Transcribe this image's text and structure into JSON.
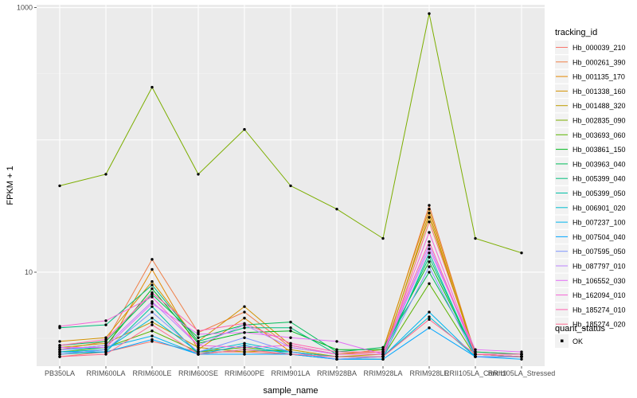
{
  "chart_data": {
    "type": "line",
    "xlabel": "sample_name",
    "ylabel": "FPKM + 1",
    "y_scale": "log10",
    "ylim": [
      1.95,
      1050
    ],
    "y_ticks": [
      {
        "value": 10,
        "label": "10"
      },
      {
        "value": 1000,
        "label": "1000"
      }
    ],
    "categories": [
      "PB350LA",
      "RRIM600LA",
      "RRIM600LE",
      "RRIM600SE",
      "RRIM600PE",
      "RRIM901LA",
      "RRIM928BA",
      "RRIM928LA",
      "RRIM928LE",
      "RRII105LA_Control",
      "RRII105LA_Stressed"
    ],
    "series": [
      {
        "name": "Hb_000039_210",
        "color": "#F8766D",
        "values": [
          2.3,
          2.5,
          3.0,
          2.5,
          2.5,
          2.4,
          2.2,
          2.2,
          24,
          2.5,
          2.4
        ]
      },
      {
        "name": "Hb_000261_390",
        "color": "#EF7F48",
        "values": [
          2.6,
          3.0,
          12.5,
          3.5,
          5.0,
          2.7,
          2.4,
          2.5,
          32,
          2.4,
          2.3
        ]
      },
      {
        "name": "Hb_001135_170",
        "color": "#E48800",
        "values": [
          2.4,
          2.6,
          10.5,
          2.6,
          4.5,
          2.5,
          2.3,
          2.3,
          28,
          2.3,
          2.3
        ]
      },
      {
        "name": "Hb_001338_160",
        "color": "#D39200",
        "values": [
          3.0,
          3.2,
          8.5,
          3.0,
          5.5,
          2.8,
          2.4,
          2.6,
          30,
          2.4,
          2.3
        ]
      },
      {
        "name": "Hb_001488_320",
        "color": "#BE9C00",
        "values": [
          2.7,
          2.9,
          4.2,
          2.7,
          2.5,
          2.6,
          2.3,
          2.4,
          26,
          2.4,
          2.3
        ]
      },
      {
        "name": "Hb_002835_090",
        "color": "#7CAE00",
        "values": [
          45,
          55,
          250,
          55,
          120,
          45,
          30,
          18,
          900,
          18,
          14
        ]
      },
      {
        "name": "Hb_003693_060",
        "color": "#5BB300",
        "values": [
          2.5,
          2.7,
          3.6,
          2.5,
          2.7,
          2.5,
          2.3,
          2.3,
          8.2,
          2.3,
          2.3
        ]
      },
      {
        "name": "Hb_003861_150",
        "color": "#00B81F",
        "values": [
          2.6,
          2.8,
          7.5,
          2.9,
          3.5,
          3.6,
          2.6,
          2.6,
          12,
          2.4,
          2.4
        ]
      },
      {
        "name": "Hb_003963_040",
        "color": "#00BC59",
        "values": [
          2.8,
          3.0,
          6.8,
          3.2,
          4.0,
          4.2,
          2.5,
          2.7,
          10,
          2.5,
          2.4
        ]
      },
      {
        "name": "Hb_005399_040",
        "color": "#00BF7D",
        "values": [
          3.8,
          4.0,
          8.0,
          3.0,
          3.8,
          3.8,
          2.4,
          2.4,
          13,
          2.4,
          2.3
        ]
      },
      {
        "name": "Hb_005399_050",
        "color": "#00C0A7",
        "values": [
          2.4,
          2.5,
          5.5,
          2.4,
          2.6,
          2.5,
          2.2,
          2.2,
          14,
          2.3,
          2.3
        ]
      },
      {
        "name": "Hb_006901_020",
        "color": "#00BDD0",
        "values": [
          2.5,
          2.6,
          4.5,
          2.5,
          2.9,
          2.5,
          2.3,
          2.3,
          4.6,
          2.3,
          2.3
        ]
      },
      {
        "name": "Hb_007237_100",
        "color": "#00B4EF",
        "values": [
          2.6,
          2.7,
          3.3,
          2.4,
          2.8,
          2.4,
          2.2,
          2.3,
          5.0,
          2.3,
          2.3
        ]
      },
      {
        "name": "Hb_007504_040",
        "color": "#00A5FF",
        "values": [
          2.5,
          2.5,
          3.1,
          2.4,
          2.4,
          2.4,
          2.2,
          2.2,
          3.8,
          2.3,
          2.2
        ]
      },
      {
        "name": "Hb_007595_050",
        "color": "#7F96FF",
        "values": [
          2.4,
          2.6,
          5.0,
          2.5,
          3.2,
          2.5,
          2.2,
          2.3,
          11,
          2.3,
          2.3
        ]
      },
      {
        "name": "Hb_087797_010",
        "color": "#BC81FF",
        "values": [
          2.6,
          2.8,
          6.0,
          2.8,
          4.0,
          2.7,
          2.4,
          2.4,
          16,
          2.4,
          2.4
        ]
      },
      {
        "name": "Hb_106552_030",
        "color": "#E36EF6",
        "values": [
          2.7,
          2.7,
          5.8,
          3.4,
          3.5,
          3.2,
          3.0,
          2.4,
          15,
          2.6,
          2.5
        ]
      },
      {
        "name": "Hb_162094_010",
        "color": "#F664D7",
        "values": [
          3.9,
          4.3,
          6.5,
          2.8,
          2.7,
          2.8,
          2.4,
          2.4,
          20,
          2.4,
          2.4
        ]
      },
      {
        "name": "Hb_185274_010",
        "color": "#FF62B0",
        "values": [
          2.8,
          3.1,
          7.0,
          3.6,
          4.1,
          2.9,
          2.5,
          2.5,
          17,
          2.4,
          2.4
        ]
      },
      {
        "name": "Hb_185274_020",
        "color": "#FF6C91",
        "values": [
          2.3,
          2.4,
          4.0,
          2.4,
          2.6,
          2.4,
          2.3,
          2.3,
          4.4,
          2.4,
          2.3
        ]
      }
    ],
    "legend": {
      "title": "tracking_id",
      "position": "right",
      "secondary_title": "quant_status",
      "secondary_items": [
        "OK"
      ]
    },
    "grid": true,
    "panel_background": "#EBEBEB"
  }
}
